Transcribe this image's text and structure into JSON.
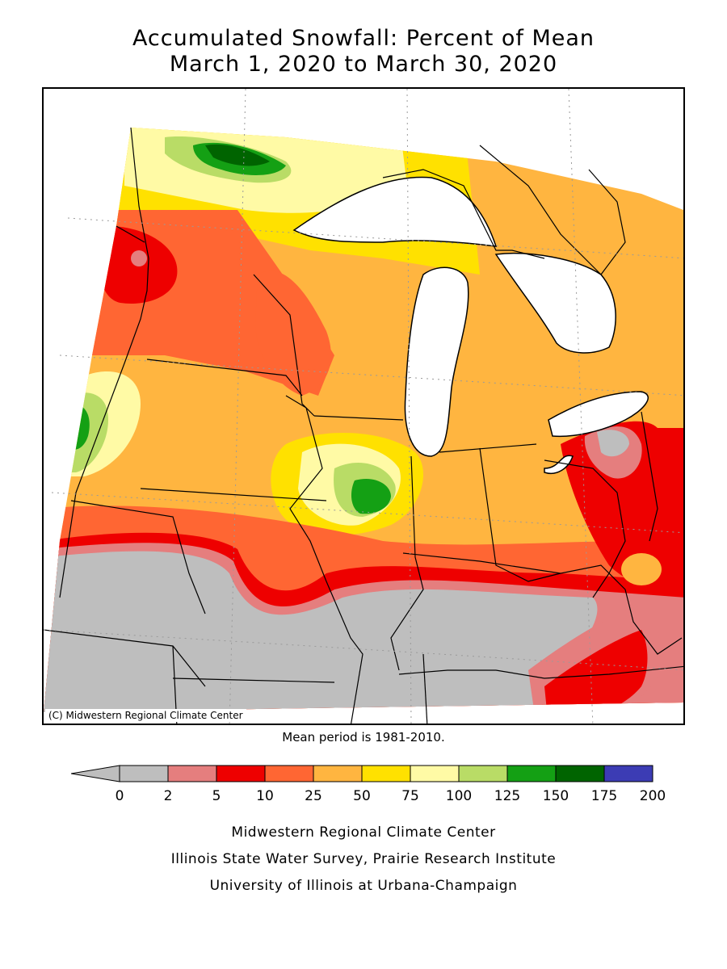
{
  "title_line1": "Accumulated Snowfall: Percent of Mean",
  "title_line2": "March 1, 2020 to March 30, 2020",
  "copyright": "(C) Midwestern Regional Climate Center",
  "mean_period": "Mean period is 1981-2010.",
  "legend": {
    "ticks": [
      "0",
      "2",
      "5",
      "10",
      "25",
      "50",
      "75",
      "100",
      "125",
      "150",
      "175",
      "200"
    ],
    "colors": [
      "#bebebe",
      "#e57e7e",
      "#ee0000",
      "#ff6633",
      "#ffb540",
      "#ffe100",
      "#fffaa5",
      "#b9dc66",
      "#14a014",
      "#006400",
      "#3c3cb4"
    ],
    "below_color": "#bebebe"
  },
  "credits": [
    "Midwestern Regional Climate Center",
    "Illinois State Water Survey, Prairie Research Institute",
    "University of Illinois at Urbana-Champaign"
  ]
}
